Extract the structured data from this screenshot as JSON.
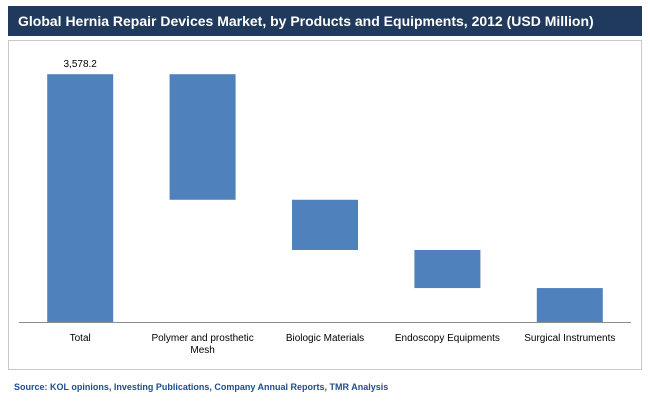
{
  "title": "Global Hernia Repair Devices Market, by Products and Equipments, 2012 (USD Million)",
  "source": "Source: KOL opinions, Investing Publications, Company Annual Reports, TMR Analysis",
  "colors": {
    "bar": "#4f81bd",
    "title_bg": "#1f3a5c",
    "source_text": "#1f4e8c"
  },
  "chart_data": {
    "type": "waterfall",
    "title": "Global Hernia Repair Devices Market, by Products and Equipments, 2012 (USD Million)",
    "categories": [
      "Total",
      "Polymer and prosthetic Mesh",
      "Biologic Materials",
      "Endoscopy Equipments",
      "Surgical Instruments"
    ],
    "category_lines": [
      [
        "Total"
      ],
      [
        "Polymer and prosthetic",
        "Mesh"
      ],
      [
        "Biologic Materials"
      ],
      [
        "Endoscopy Equipments"
      ],
      [
        "Surgical Instruments"
      ]
    ],
    "bars": [
      {
        "category": "Total",
        "from": 0,
        "to": 3578.2,
        "label": "3,578.2"
      },
      {
        "category": "Polymer and prosthetic Mesh",
        "from": 1765,
        "to": 3578.2,
        "label": ""
      },
      {
        "category": "Biologic Materials",
        "from": 1040,
        "to": 1765,
        "label": ""
      },
      {
        "category": "Endoscopy Equipments",
        "from": 490,
        "to": 1040,
        "label": ""
      },
      {
        "category": "Surgical Instruments",
        "from": 0,
        "to": 490,
        "label": ""
      }
    ],
    "ylim": [
      0,
      4000
    ],
    "grid": false,
    "legend": "none"
  }
}
